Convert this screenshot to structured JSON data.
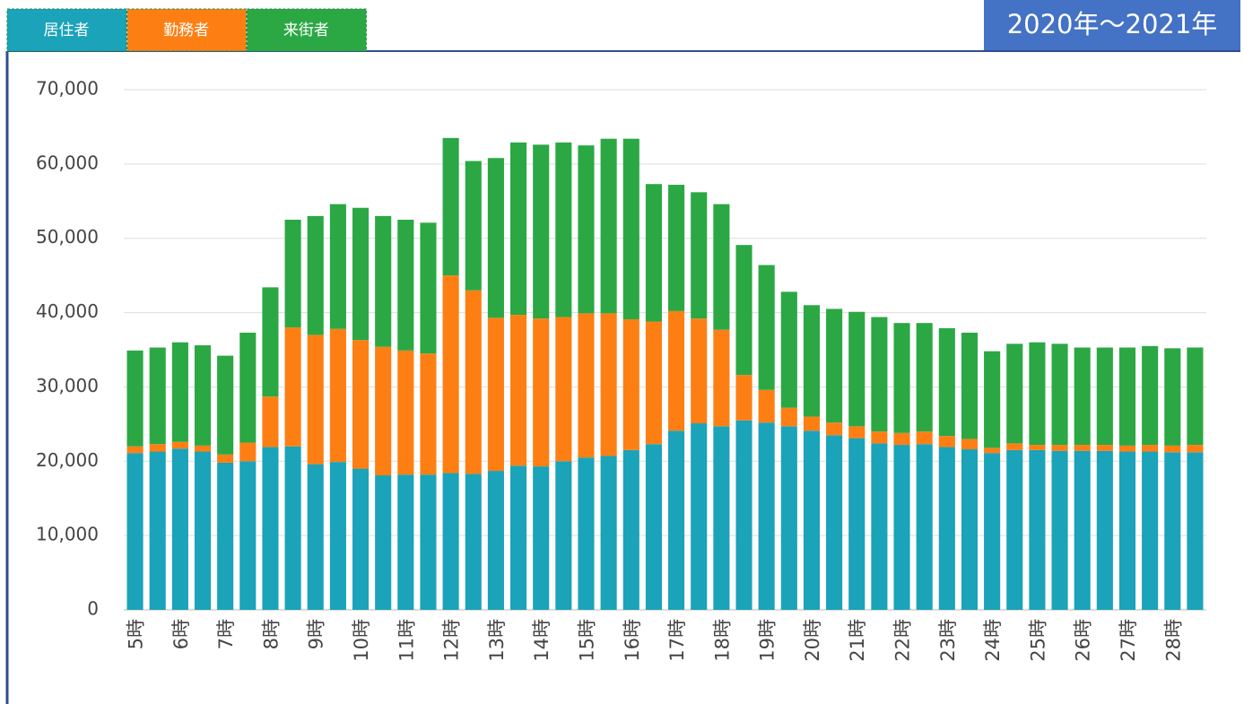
{
  "chart_data": {
    "type": "stacked-bar",
    "title": "2020年～2021年",
    "categories": [
      "5時",
      null,
      "6時",
      null,
      "7時",
      null,
      "8時",
      null,
      "9時",
      null,
      "10時",
      null,
      "11時",
      null,
      "12時",
      null,
      "13時",
      null,
      "14時",
      null,
      "15時",
      null,
      "16時",
      null,
      "17時",
      null,
      "18時",
      null,
      "19時",
      null,
      "20時",
      null,
      "21時",
      null,
      "22時",
      null,
      "23時",
      null,
      "24時",
      null,
      "25時",
      null,
      "26時",
      null,
      "27時",
      null,
      "28時",
      null
    ],
    "series": [
      {
        "name": "居住者",
        "color": "#1aa3b9",
        "values": [
          21100,
          21300,
          21700,
          21300,
          19800,
          20000,
          21900,
          22000,
          19600,
          19900,
          19000,
          18100,
          18200,
          18200,
          18400,
          18300,
          18700,
          19400,
          19300,
          20000,
          20500,
          20700,
          21500,
          22300,
          24100,
          25100,
          24700,
          25500,
          25200,
          24700,
          24100,
          23500,
          23100,
          22400,
          22200,
          22300,
          21900,
          21600,
          21100,
          21500,
          21500,
          21400,
          21400,
          21400,
          21300,
          21300,
          21200,
          21200
        ]
      },
      {
        "name": "勤務者",
        "color": "#fd7f14",
        "values": [
          900,
          1000,
          900,
          800,
          1100,
          2500,
          6800,
          16000,
          17400,
          17900,
          17300,
          17300,
          16700,
          16300,
          26600,
          24700,
          20600,
          20300,
          19900,
          19400,
          19400,
          19200,
          17600,
          16500,
          16100,
          14100,
          13000,
          6100,
          4400,
          2500,
          1900,
          1700,
          1600,
          1600,
          1600,
          1700,
          1500,
          1400,
          700,
          900,
          700,
          800,
          800,
          800,
          800,
          900,
          900,
          1000
        ]
      },
      {
        "name": "来街者",
        "color": "#2ba844",
        "values": [
          12900,
          13000,
          13400,
          13500,
          13300,
          14800,
          14700,
          14500,
          16000,
          16800,
          17800,
          17600,
          17600,
          17600,
          18500,
          17400,
          21500,
          23200,
          23400,
          23500,
          22600,
          23500,
          24300,
          18500,
          17000,
          17000,
          16900,
          17500,
          16800,
          15600,
          15000,
          15300,
          15400,
          15400,
          14800,
          14600,
          14500,
          14300,
          13000,
          13400,
          13800,
          13600,
          13100,
          13100,
          13200,
          13300,
          13100,
          13100
        ]
      }
    ],
    "ylim": [
      0,
      70000
    ],
    "yticks": [
      0,
      {
        "value": 10000,
        "label": "10,000"
      },
      {
        "value": 20000,
        "label": "20,000"
      },
      {
        "value": 30000,
        "label": "30,000"
      },
      {
        "value": 40000,
        "label": "40,000"
      },
      {
        "value": 50000,
        "label": "50,000"
      },
      {
        "value": 60000,
        "label": "60,000"
      },
      {
        "value": 70000,
        "label": "70,000"
      }
    ],
    "grid": true
  }
}
